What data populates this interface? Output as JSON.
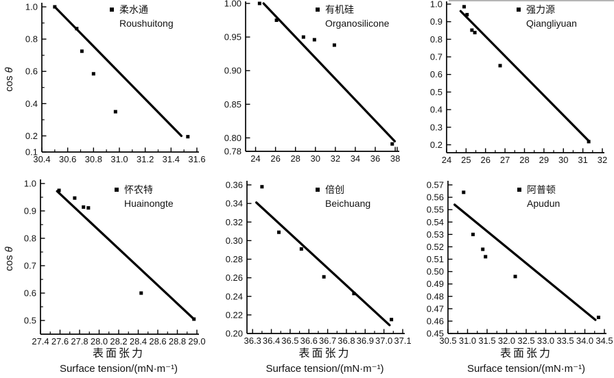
{
  "figure_titles": {
    "y_axis": {
      "prefix": "cos ",
      "symbol": "θ"
    },
    "x_axis_cn": "表面张力",
    "x_axis_en": "Surface tension/(mN·m⁻¹)"
  },
  "colors": {
    "ink": "#000000",
    "background": "#ffffff"
  },
  "chart_data": [
    {
      "type": "scatter",
      "legend": {
        "cn": "柔水通",
        "pinyin": "Roushuitong"
      },
      "xlim": [
        30.4,
        31.6
      ],
      "ylim": [
        0.1,
        1.0
      ],
      "xticks": [
        30.4,
        30.6,
        30.8,
        31.0,
        31.2,
        31.4,
        31.6
      ],
      "xtick_labels": [
        "30.4",
        "30.6",
        "30.8",
        "31.0",
        "31.2",
        "31.4",
        "31.6"
      ],
      "xticks_minor": [
        30.5,
        30.7,
        30.9,
        31.1,
        31.3,
        31.5
      ],
      "yticks": [
        0.1,
        0.2,
        0.4,
        0.6,
        0.8,
        1.0
      ],
      "ytick_labels": [
        "0.1",
        "0.2",
        "0.4",
        "0.6",
        "0.8",
        "1.0"
      ],
      "yticks_minor": [
        0.3,
        0.5,
        0.7,
        0.9
      ],
      "points": [
        [
          30.5,
          1.0
        ],
        [
          30.67,
          0.865
        ],
        [
          30.71,
          0.725
        ],
        [
          30.8,
          0.585
        ],
        [
          30.97,
          0.35
        ],
        [
          31.53,
          0.195
        ]
      ],
      "trend_line": [
        [
          30.5,
          1.0
        ],
        [
          31.48,
          0.2
        ]
      ],
      "show_y_title": true,
      "show_x_title": false
    },
    {
      "type": "scatter",
      "legend": {
        "cn": "有机硅",
        "pinyin": "Organosilicone"
      },
      "xlim": [
        23.0,
        38.2
      ],
      "ylim": [
        0.78,
        1.0
      ],
      "xticks": [
        24,
        26,
        28,
        30,
        32,
        34,
        36,
        38,
        38.2
      ],
      "xtick_labels": [
        "24",
        "26",
        "28",
        "30",
        "32",
        "34",
        "36",
        "38",
        ""
      ],
      "xticks_minor": [],
      "yticks": [
        0.78,
        0.8,
        0.85,
        0.9,
        0.95,
        1.0
      ],
      "ytick_labels": [
        "0.78",
        "0.80",
        "0.85",
        "0.90",
        "0.95",
        "1.00"
      ],
      "yticks_minor": [],
      "points": [
        [
          24.4,
          1.0
        ],
        [
          26.1,
          0.975
        ],
        [
          28.8,
          0.95
        ],
        [
          29.9,
          0.946
        ],
        [
          31.9,
          0.938
        ],
        [
          37.7,
          0.791
        ]
      ],
      "trend_line": [
        [
          24.8,
          1.0
        ],
        [
          37.95,
          0.795
        ]
      ],
      "show_y_title": false,
      "show_x_title": false
    },
    {
      "type": "scatter",
      "legend": {
        "cn": "强力源",
        "pinyin": "Qiangliyuan"
      },
      "xlim": [
        24,
        32
      ],
      "ylim": [
        0.155,
        1.0
      ],
      "xticks": [
        24,
        25,
        26,
        27,
        28,
        29,
        30,
        31,
        32
      ],
      "xtick_labels": [
        "24",
        "25",
        "26",
        "27",
        "28",
        "29",
        "30",
        "31",
        "32"
      ],
      "xticks_minor": [
        24.5,
        25.5,
        26.5,
        27.5,
        28.5,
        29.5,
        30.5,
        31.5
      ],
      "yticks": [
        0.2,
        0.3,
        0.4,
        0.5,
        0.6,
        0.7,
        0.8,
        0.9,
        1.0
      ],
      "ytick_labels": [
        "0.2",
        "0.3",
        "0.4",
        "0.5",
        "0.6",
        "0.7",
        "0.8",
        "0.9",
        "1.0"
      ],
      "yticks_minor": [],
      "points": [
        [
          24.9,
          0.985
        ],
        [
          25.05,
          0.94
        ],
        [
          25.3,
          0.852
        ],
        [
          25.45,
          0.838
        ],
        [
          26.75,
          0.65
        ],
        [
          31.3,
          0.218
        ]
      ],
      "trend_line": [
        [
          24.72,
          0.96
        ],
        [
          31.32,
          0.22
        ]
      ],
      "show_y_title": false,
      "show_x_title": false
    },
    {
      "type": "scatter",
      "legend": {
        "cn": "怀农特",
        "pinyin": "Huainongte"
      },
      "xlim": [
        27.4,
        29.0
      ],
      "ylim": [
        0.45,
        1.0
      ],
      "xticks": [
        27.4,
        27.6,
        27.8,
        28.0,
        28.2,
        28.4,
        28.6,
        28.8,
        29.0
      ],
      "xtick_labels": [
        "27.4",
        "27.6",
        "27.8",
        "28.0",
        "28.2",
        "28.4",
        "28.6",
        "28.8",
        "29.0"
      ],
      "xticks_minor": [
        27.5,
        27.7,
        27.9,
        28.1,
        28.3,
        28.5,
        28.7,
        28.9
      ],
      "yticks": [
        0.5,
        0.6,
        0.7,
        0.8,
        0.9,
        1.0
      ],
      "ytick_labels": [
        "0.5",
        "0.6",
        "0.7",
        "0.8",
        "0.9",
        "1.0"
      ],
      "yticks_minor": [
        0.55,
        0.65,
        0.75,
        0.85,
        0.95
      ],
      "points": [
        [
          27.59,
          0.975
        ],
        [
          27.75,
          0.947
        ],
        [
          27.84,
          0.914
        ],
        [
          27.89,
          0.911
        ],
        [
          28.43,
          0.6
        ],
        [
          28.97,
          0.505
        ]
      ],
      "trend_line": [
        [
          27.57,
          0.972
        ],
        [
          28.97,
          0.505
        ]
      ],
      "show_y_title": true,
      "show_x_title": true
    },
    {
      "type": "scatter",
      "legend": {
        "cn": "倍创",
        "pinyin": "Beichuang"
      },
      "xlim": [
        36.27,
        37.1
      ],
      "ylim": [
        0.2,
        0.36
      ],
      "xticks": [
        36.3,
        36.4,
        36.5,
        36.6,
        36.7,
        36.8,
        36.9,
        37.0,
        37.1
      ],
      "xtick_labels": [
        "36.3",
        "36.4",
        "36.5",
        "36.6",
        "36.7",
        "36.8",
        "36.9",
        "37.0",
        "37.1"
      ],
      "xticks_minor": [
        36.35,
        36.45,
        36.55,
        36.65,
        36.75,
        36.85,
        36.95,
        37.05
      ],
      "yticks": [
        0.2,
        0.22,
        0.24,
        0.26,
        0.28,
        0.3,
        0.32,
        0.34,
        0.36
      ],
      "ytick_labels": [
        "0.20",
        "0.22",
        "0.24",
        "0.26",
        "0.28",
        "0.30",
        "0.32",
        "0.34",
        "0.36"
      ],
      "yticks_minor": [],
      "points": [
        [
          36.35,
          0.358
        ],
        [
          36.44,
          0.309
        ],
        [
          36.56,
          0.291
        ],
        [
          36.68,
          0.261
        ],
        [
          36.84,
          0.243
        ],
        [
          37.04,
          0.215
        ]
      ],
      "trend_line": [
        [
          36.32,
          0.341
        ],
        [
          37.03,
          0.209
        ]
      ],
      "show_y_title": false,
      "show_x_title": true
    },
    {
      "type": "scatter",
      "legend": {
        "cn": "阿普顿",
        "pinyin": "Apudun"
      },
      "xlim": [
        30.5,
        34.5
      ],
      "ylim": [
        0.45,
        0.57
      ],
      "xticks": [
        30.5,
        31.0,
        31.5,
        32.0,
        32.5,
        33.0,
        33.5,
        34.0,
        34.5
      ],
      "xtick_labels": [
        "30.5",
        "31.0",
        "31.5",
        "32.0",
        "32.5",
        "33.0",
        "33.5",
        "34.0",
        "34.5"
      ],
      "xticks_minor": [
        30.75,
        31.25,
        31.75,
        32.25,
        32.75,
        33.25,
        33.75,
        34.25
      ],
      "yticks": [
        0.45,
        0.46,
        0.47,
        0.48,
        0.49,
        0.5,
        0.51,
        0.52,
        0.53,
        0.54,
        0.55,
        0.56,
        0.57
      ],
      "ytick_labels": [
        "0.45",
        "0.46",
        "0.47",
        "0.48",
        "0.49",
        "0.50",
        "0.51",
        "0.52",
        "0.53",
        "0.54",
        "0.55",
        "0.56",
        "0.57"
      ],
      "yticks_minor": [],
      "points": [
        [
          30.9,
          0.564
        ],
        [
          31.14,
          0.53
        ],
        [
          31.39,
          0.518
        ],
        [
          31.46,
          0.512
        ],
        [
          32.22,
          0.496
        ],
        [
          34.35,
          0.463
        ]
      ],
      "trend_line": [
        [
          30.67,
          0.554
        ],
        [
          34.27,
          0.461
        ]
      ],
      "show_y_title": false,
      "show_x_title": true
    }
  ]
}
